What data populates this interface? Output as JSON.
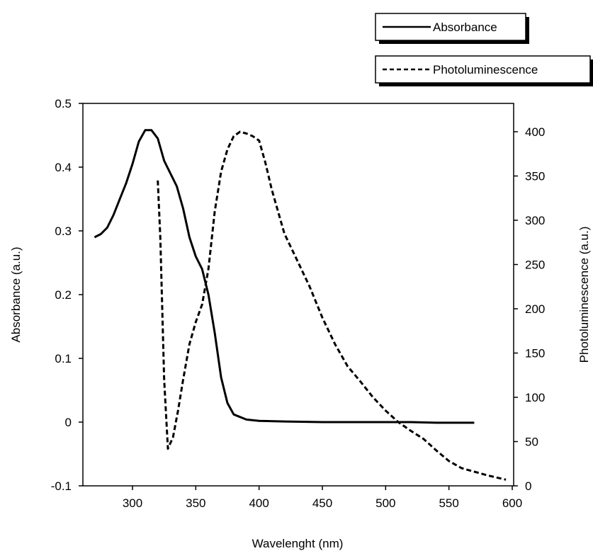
{
  "chart_data": {
    "type": "line",
    "xlabel": "Wavelenght (nm)",
    "xlim": [
      260,
      600
    ],
    "xticks": [
      300,
      350,
      400,
      450,
      500,
      550,
      600
    ],
    "y_left": {
      "label": "Absorbance (a.u.)",
      "lim": [
        -0.1,
        0.5
      ],
      "ticks": [
        -0.1,
        0,
        0.1,
        0.2,
        0.3,
        0.4,
        0.5
      ],
      "tick_labels": [
        "-0.1",
        "0",
        "0.1",
        "0.2",
        "0.3",
        "0.4",
        "0.5"
      ]
    },
    "y_right": {
      "label": "Photoluminescence (a.u.)",
      "lim": [
        0,
        432
      ],
      "ticks": [
        0,
        50,
        100,
        150,
        200,
        250,
        300,
        350,
        400
      ],
      "tick_labels": [
        "0",
        "50",
        "100",
        "150",
        "200",
        "250",
        "300",
        "350",
        "400"
      ]
    },
    "grid": false,
    "legend_position": "top-right",
    "series": [
      {
        "name": "Absorbance",
        "axis": "left",
        "style": "solid",
        "color": "#000000",
        "x": [
          270,
          275,
          280,
          285,
          290,
          295,
          300,
          305,
          310,
          315,
          320,
          325,
          330,
          335,
          340,
          345,
          350,
          355,
          360,
          365,
          370,
          375,
          380,
          390,
          400,
          420,
          450,
          500,
          520,
          540,
          570
        ],
        "y": [
          0.29,
          0.295,
          0.305,
          0.325,
          0.35,
          0.375,
          0.405,
          0.44,
          0.458,
          0.458,
          0.445,
          0.41,
          0.39,
          0.37,
          0.335,
          0.29,
          0.26,
          0.24,
          0.2,
          0.14,
          0.07,
          0.03,
          0.012,
          0.004,
          0.002,
          0.001,
          0.0,
          0.0,
          0.0,
          -0.001,
          -0.001
        ]
      },
      {
        "name": "Photoluminescence",
        "axis": "right",
        "style": "dashed",
        "color": "#000000",
        "x": [
          320,
          322,
          325,
          328,
          332,
          336,
          340,
          345,
          350,
          355,
          360,
          365,
          370,
          375,
          380,
          385,
          390,
          395,
          400,
          405,
          410,
          420,
          430,
          440,
          450,
          460,
          470,
          480,
          490,
          500,
          510,
          520,
          530,
          540,
          550,
          560,
          570,
          580,
          595
        ],
        "y": [
          345,
          280,
          120,
          42,
          55,
          85,
          120,
          160,
          185,
          205,
          245,
          310,
          355,
          380,
          395,
          400,
          398,
          395,
          390,
          365,
          335,
          285,
          255,
          225,
          190,
          160,
          135,
          118,
          100,
          85,
          72,
          62,
          53,
          40,
          28,
          20,
          16,
          12,
          7
        ]
      }
    ]
  }
}
